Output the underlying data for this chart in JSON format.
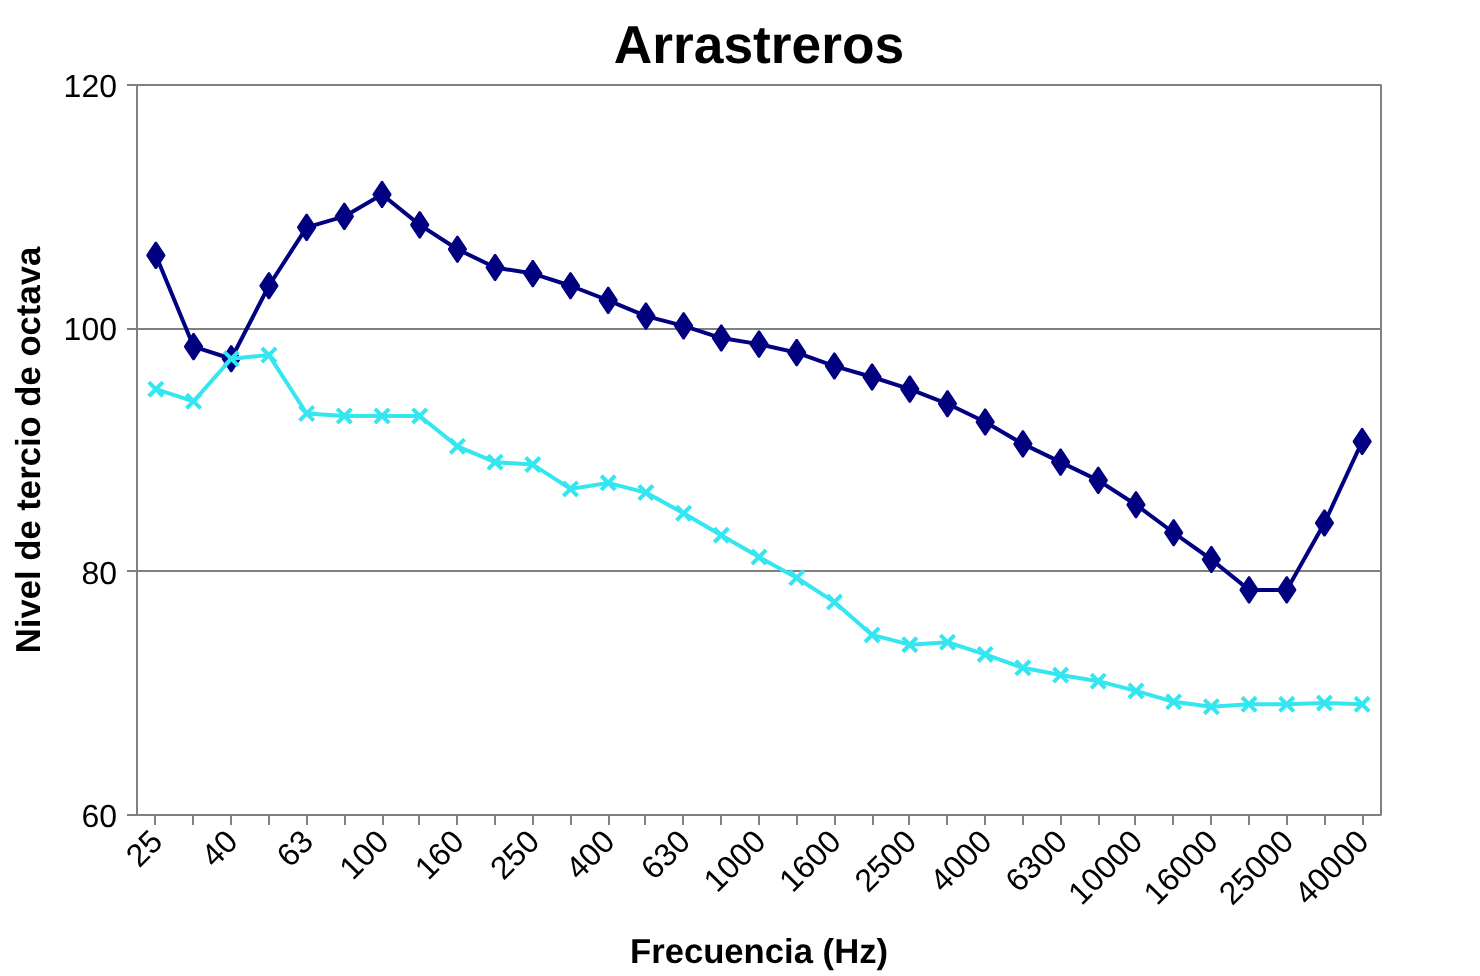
{
  "chart_data": {
    "type": "line",
    "title": "Arrastreros",
    "xlabel": "Frecuencia (Hz)",
    "ylabel": "Nivel de tercio de octava",
    "categories": [
      "25",
      null,
      "40",
      null,
      "63",
      null,
      "100",
      null,
      "160",
      null,
      "250",
      null,
      "400",
      null,
      "630",
      null,
      "1000",
      null,
      "1600",
      null,
      "2500",
      null,
      "4000",
      null,
      "6300",
      null,
      "10000",
      null,
      "16000",
      null,
      "25000",
      null,
      "40000"
    ],
    "series": [
      {
        "color": "#000080",
        "marker": "diamond",
        "values": [
          106,
          98.5,
          97.5,
          103.5,
          108.3,
          109.2,
          111,
          108.5,
          106.5,
          105,
          104.5,
          103.5,
          102.3,
          101,
          100.2,
          99.2,
          98.7,
          98,
          96.9,
          96,
          95,
          93.8,
          92.3,
          90.5,
          89,
          87.5,
          85.5,
          83.2,
          81,
          78.5,
          78.5,
          84,
          90.7
        ]
      },
      {
        "color": "#33e6f0",
        "marker": "cross",
        "values": [
          95,
          94,
          97.5,
          97.8,
          93,
          92.8,
          92.8,
          92.8,
          90.3,
          89,
          88.8,
          86.8,
          87.3,
          86.5,
          84.8,
          83,
          81.2,
          79.5,
          77.5,
          74.8,
          74,
          74.2,
          73.2,
          72.1,
          71.5,
          71,
          70.2,
          69.3,
          68.9,
          69.1,
          69.1,
          69.2,
          69.1
        ]
      }
    ],
    "ylim": [
      60,
      120
    ],
    "yticks": [
      60,
      80,
      100,
      120
    ],
    "grid": "y",
    "line_style": "solid"
  }
}
